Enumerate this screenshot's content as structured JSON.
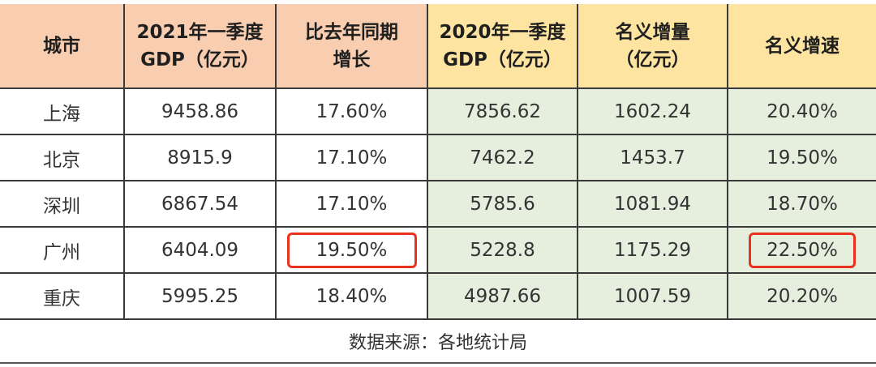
{
  "table": {
    "headers": [
      {
        "line1": "城市",
        "line2": ""
      },
      {
        "line1": "2021年一季度",
        "line2": "GDP（亿元）"
      },
      {
        "line1": "比去年同期",
        "line2": "增长"
      },
      {
        "line1": "2020年一季度",
        "line2": "GDP（亿元）"
      },
      {
        "line1": "名义增量",
        "line2": "（亿元）"
      },
      {
        "line1": "名义增速",
        "line2": ""
      }
    ],
    "rows": [
      {
        "city": "上海",
        "gdp_2021q1": "9458.86",
        "yoy_growth": "17.60%",
        "gdp_2020q1": "7856.62",
        "nominal_increase": "1602.24",
        "nominal_growth": "20.40%"
      },
      {
        "city": "北京",
        "gdp_2021q1": "8915.9",
        "yoy_growth": "17.10%",
        "gdp_2020q1": "7462.2",
        "nominal_increase": "1453.7",
        "nominal_growth": "19.50%"
      },
      {
        "city": "深圳",
        "gdp_2021q1": "6867.54",
        "yoy_growth": "17.10%",
        "gdp_2020q1": "5785.6",
        "nominal_increase": "1081.94",
        "nominal_growth": "18.70%"
      },
      {
        "city": "广州",
        "gdp_2021q1": "6404.09",
        "yoy_growth": "19.50%",
        "gdp_2020q1": "5228.8",
        "nominal_increase": "1175.29",
        "nominal_growth": "22.50%"
      },
      {
        "city": "重庆",
        "gdp_2021q1": "5995.25",
        "yoy_growth": "18.40%",
        "gdp_2020q1": "4987.66",
        "nominal_increase": "1007.59",
        "nominal_growth": "20.20%"
      }
    ],
    "highlighted_cells": [
      {
        "row": 3,
        "column": "yoy_growth"
      },
      {
        "row": 3,
        "column": "nominal_growth"
      }
    ],
    "source_note": "数据来源：各地统计局"
  },
  "colors": {
    "header_peach": "#f8cdb0",
    "header_yellow": "#fde4a0",
    "body_green": "#e6eedd",
    "highlight_red": "#e8321e",
    "grid_line": "#3a3a3a"
  }
}
